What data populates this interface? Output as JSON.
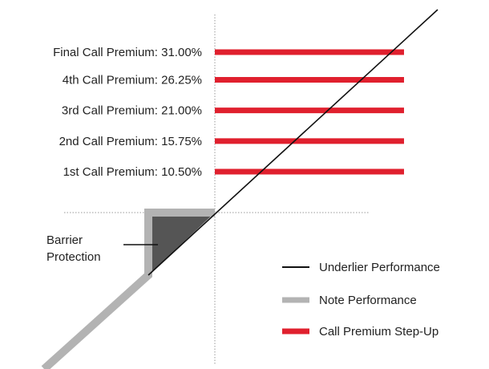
{
  "chart_data": {
    "type": "line",
    "title": "",
    "xlabel": "",
    "ylabel": "",
    "grid": false,
    "legend_placement": "bottom-right",
    "call_premiums": [
      {
        "label": "Final Call Premium: 31.00%",
        "value": 31.0
      },
      {
        "label": "4th Call Premium: 26.25%",
        "value": 26.25
      },
      {
        "label": "3rd Call Premium: 21.00%",
        "value": 21.0
      },
      {
        "label": "2nd Call Premium: 15.75%",
        "value": 15.75
      },
      {
        "label": "1st Call Premium: 10.50%",
        "value": 10.5
      }
    ],
    "barrier_label_lines": [
      "Barrier",
      "Protection"
    ],
    "legend": [
      {
        "name": "Underlier Performance",
        "color": "#111111"
      },
      {
        "name": "Note Performance",
        "color": "#b3b3b3"
      },
      {
        "name": "Call Premium Step-Up",
        "color": "#e0202e"
      }
    ],
    "colors": {
      "underlier": "#111111",
      "note": "#b3b3b3",
      "call_premium": "#e0202e",
      "barrier_fill": "#555555",
      "reference_lines": "#9a9a9a"
    }
  }
}
